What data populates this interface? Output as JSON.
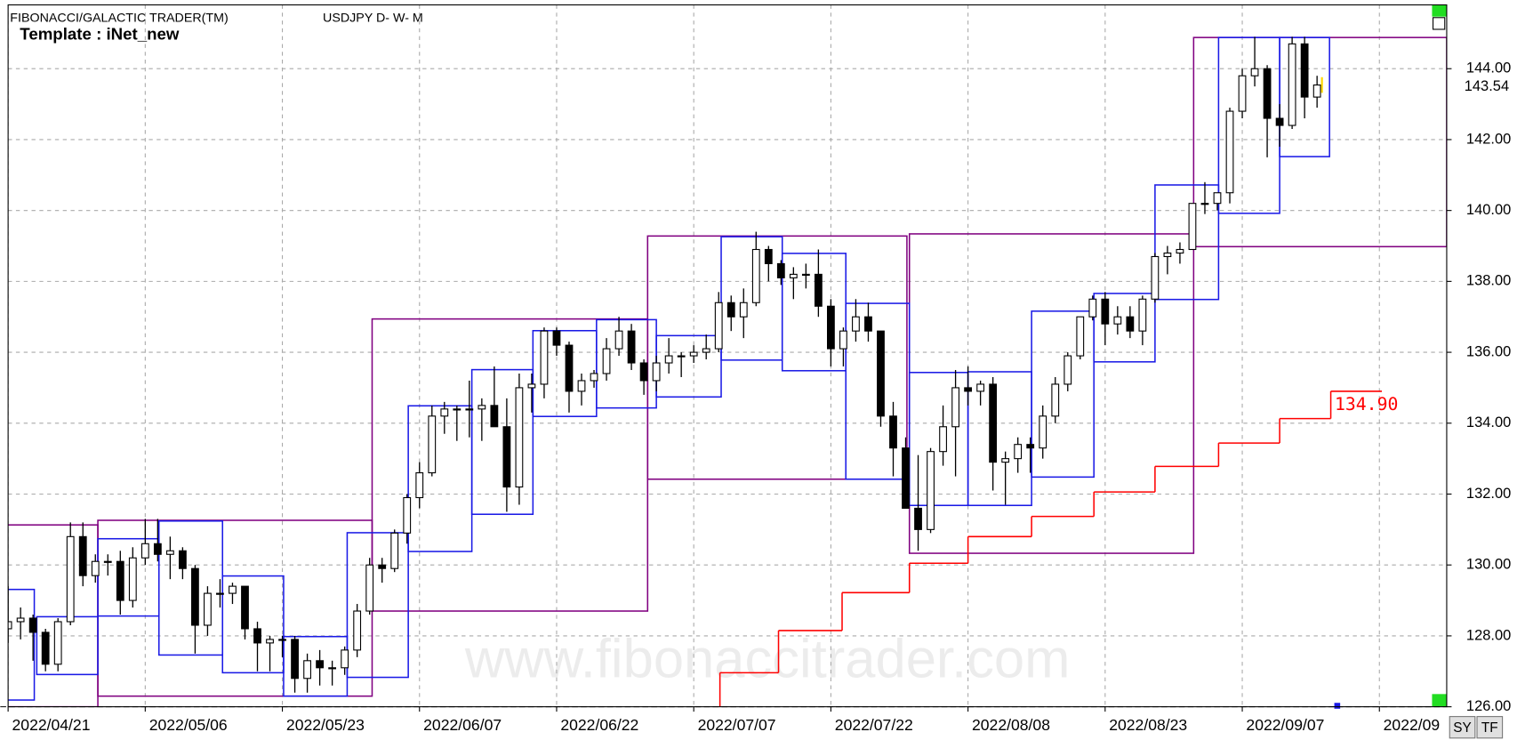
{
  "chart_data": {
    "type": "candlestick",
    "title": "FIBONACCI/GALACTIC TRADER(TM)",
    "symbol": "USDJPY D- W- M",
    "template": "Template : iNet_new",
    "watermark": "www.fibonaccitrader.com",
    "buttons": [
      "SY",
      "TF"
    ],
    "xlim": [
      0,
      115.4
    ],
    "xticks": [
      {
        "value": 0,
        "label": "2022/04/21"
      },
      {
        "value": 11,
        "label": "2022/05/06"
      },
      {
        "value": 22,
        "label": "2022/05/23"
      },
      {
        "value": 33,
        "label": "2022/06/07"
      },
      {
        "value": 44,
        "label": "2022/06/22"
      },
      {
        "value": 55,
        "label": "2022/07/07"
      },
      {
        "value": 66,
        "label": "2022/07/22"
      },
      {
        "value": 77,
        "label": "2022/08/08"
      },
      {
        "value": 88,
        "label": "2022/08/23"
      },
      {
        "value": 99,
        "label": "2022/09/07"
      },
      {
        "value": 110,
        "label": "2022/09"
      }
    ],
    "ylim": [
      126,
      145.8
    ],
    "yticks": [
      {
        "value": 126,
        "label": "126.00"
      },
      {
        "value": 128,
        "label": "128.00"
      },
      {
        "value": 130,
        "label": "130.00"
      },
      {
        "value": 132,
        "label": "132.00"
      },
      {
        "value": 134,
        "label": "134.00"
      },
      {
        "value": 136,
        "label": "136.00"
      },
      {
        "value": 138,
        "label": "138.00"
      },
      {
        "value": 140,
        "label": "140.00"
      },
      {
        "value": 142,
        "label": "142.00"
      },
      {
        "value": 144,
        "label": "144.00"
      }
    ],
    "grid": true,
    "colors": {
      "up": "#ffffff",
      "down": "#000000",
      "weekly": "#1a1ae6",
      "monthly": "#800080",
      "stop": "#ff0000"
    },
    "ohlc": [
      [
        128.2,
        129.4,
        127.8,
        128.4
      ],
      [
        128.4,
        128.8,
        127.9,
        128.5
      ],
      [
        128.5,
        128.6,
        127.3,
        128.1
      ],
      [
        128.1,
        128.2,
        127.0,
        127.2
      ],
      [
        127.2,
        128.5,
        127.0,
        128.4
      ],
      [
        128.4,
        131.2,
        128.3,
        130.8
      ],
      [
        130.8,
        131.2,
        129.4,
        129.7
      ],
      [
        129.7,
        130.3,
        129.5,
        130.1
      ],
      [
        130.1,
        130.3,
        129.7,
        130.1
      ],
      [
        130.1,
        130.4,
        128.6,
        129.0
      ],
      [
        129.0,
        130.5,
        128.8,
        130.2
      ],
      [
        130.2,
        131.3,
        130.0,
        130.6
      ],
      [
        130.6,
        131.3,
        130.1,
        130.3
      ],
      [
        130.3,
        130.8,
        129.6,
        130.4
      ],
      [
        130.4,
        130.5,
        129.6,
        129.9
      ],
      [
        129.9,
        130.0,
        127.5,
        128.3
      ],
      [
        128.3,
        129.4,
        128.0,
        129.2
      ],
      [
        129.2,
        129.6,
        128.8,
        129.2
      ],
      [
        129.2,
        129.5,
        128.9,
        129.4
      ],
      [
        129.4,
        129.4,
        127.9,
        128.2
      ],
      [
        128.2,
        128.4,
        127.0,
        127.8
      ],
      [
        127.8,
        128.0,
        127.0,
        127.9
      ],
      [
        127.9,
        128.0,
        127.4,
        127.9
      ],
      [
        127.9,
        128.0,
        126.4,
        126.8
      ],
      [
        126.8,
        127.5,
        126.4,
        127.3
      ],
      [
        127.3,
        127.6,
        126.6,
        127.1
      ],
      [
        127.1,
        127.3,
        126.6,
        127.1
      ],
      [
        127.1,
        127.7,
        126.9,
        127.6
      ],
      [
        127.6,
        128.9,
        127.4,
        128.7
      ],
      [
        128.7,
        130.2,
        128.6,
        130.0
      ],
      [
        130.0,
        130.2,
        129.5,
        129.9
      ],
      [
        129.9,
        131.0,
        129.8,
        130.9
      ],
      [
        130.9,
        132.0,
        130.6,
        131.9
      ],
      [
        131.9,
        132.9,
        131.6,
        132.6
      ],
      [
        132.6,
        134.5,
        132.5,
        134.2
      ],
      [
        134.2,
        134.6,
        133.7,
        134.4
      ],
      [
        134.4,
        134.5,
        133.5,
        134.4
      ],
      [
        134.4,
        135.2,
        133.6,
        134.4
      ],
      [
        134.4,
        134.7,
        133.5,
        134.5
      ],
      [
        134.5,
        135.6,
        133.9,
        133.9
      ],
      [
        133.9,
        134.7,
        131.5,
        132.2
      ],
      [
        132.2,
        135.4,
        131.7,
        135.0
      ],
      [
        135.0,
        135.4,
        134.3,
        135.1
      ],
      [
        135.1,
        136.7,
        134.7,
        136.6
      ],
      [
        136.6,
        136.7,
        135.9,
        136.2
      ],
      [
        136.2,
        136.3,
        134.3,
        134.9
      ],
      [
        134.9,
        135.4,
        134.5,
        135.2
      ],
      [
        135.2,
        135.5,
        135.0,
        135.4
      ],
      [
        135.4,
        136.4,
        135.2,
        136.1
      ],
      [
        136.1,
        137.0,
        135.9,
        136.6
      ],
      [
        136.6,
        136.8,
        135.5,
        135.7
      ],
      [
        135.7,
        135.8,
        134.8,
        135.2
      ],
      [
        135.2,
        135.9,
        134.9,
        135.7
      ],
      [
        135.7,
        136.4,
        135.4,
        135.9
      ],
      [
        135.9,
        136.0,
        135.3,
        135.9
      ],
      [
        135.9,
        136.2,
        135.7,
        136.0
      ],
      [
        136.0,
        136.5,
        135.8,
        136.1
      ],
      [
        136.1,
        137.7,
        136.0,
        137.4
      ],
      [
        137.4,
        137.6,
        136.6,
        137.0
      ],
      [
        137.0,
        137.8,
        136.4,
        137.4
      ],
      [
        137.4,
        139.4,
        137.3,
        138.9
      ],
      [
        138.9,
        139.0,
        138.0,
        138.5
      ],
      [
        138.5,
        138.6,
        137.9,
        138.1
      ],
      [
        138.1,
        138.4,
        137.5,
        138.2
      ],
      [
        138.2,
        138.5,
        137.8,
        138.2
      ],
      [
        138.2,
        138.9,
        137.0,
        137.3
      ],
      [
        137.3,
        137.5,
        135.6,
        136.1
      ],
      [
        136.1,
        136.7,
        135.6,
        136.6
      ],
      [
        136.6,
        137.5,
        136.3,
        137.0
      ],
      [
        137.0,
        137.4,
        136.3,
        136.6
      ],
      [
        136.6,
        136.6,
        133.9,
        134.2
      ],
      [
        134.2,
        134.6,
        132.5,
        133.3
      ],
      [
        133.3,
        133.6,
        131.6,
        131.6
      ],
      [
        131.6,
        133.1,
        130.4,
        131.0
      ],
      [
        131.0,
        133.3,
        130.9,
        133.2
      ],
      [
        133.2,
        134.5,
        132.8,
        133.9
      ],
      [
        133.9,
        135.5,
        132.5,
        135.0
      ],
      [
        135.0,
        135.6,
        134.5,
        134.9
      ],
      [
        134.9,
        135.2,
        134.5,
        135.1
      ],
      [
        135.1,
        135.3,
        132.1,
        132.9
      ],
      [
        132.9,
        133.2,
        131.7,
        133.0
      ],
      [
        133.0,
        133.6,
        132.6,
        133.4
      ],
      [
        133.4,
        133.6,
        132.6,
        133.3
      ],
      [
        133.3,
        134.5,
        133.0,
        134.2
      ],
      [
        134.2,
        135.3,
        134.0,
        135.1
      ],
      [
        135.1,
        136.0,
        134.9,
        135.9
      ],
      [
        135.9,
        137.0,
        135.8,
        137.0
      ],
      [
        137.0,
        137.6,
        136.9,
        137.5
      ],
      [
        137.5,
        137.7,
        136.2,
        136.8
      ],
      [
        136.8,
        137.3,
        136.5,
        137.0
      ],
      [
        137.0,
        137.3,
        136.4,
        136.6
      ],
      [
        136.6,
        137.6,
        136.2,
        137.5
      ],
      [
        137.5,
        138.8,
        137.4,
        138.7
      ],
      [
        138.7,
        139.0,
        138.2,
        138.8
      ],
      [
        138.8,
        139.1,
        138.5,
        138.9
      ],
      [
        138.9,
        140.2,
        138.9,
        140.2
      ],
      [
        140.2,
        140.8,
        139.9,
        140.2
      ],
      [
        140.2,
        140.4,
        140.0,
        140.5
      ],
      [
        140.5,
        142.9,
        140.2,
        142.8
      ],
      [
        142.8,
        144.0,
        142.6,
        143.8
      ],
      [
        143.8,
        144.9,
        143.5,
        144.0
      ],
      [
        144.0,
        144.1,
        141.5,
        142.6
      ],
      [
        142.6,
        143.0,
        141.8,
        142.4
      ],
      [
        142.4,
        144.9,
        142.3,
        144.7
      ],
      [
        144.7,
        144.9,
        142.6,
        143.2
      ],
      [
        143.2,
        143.8,
        142.9,
        143.54
      ]
    ],
    "weekly_boxes": [
      {
        "x0": -0.6,
        "x1": 2.1,
        "high": 129.31,
        "low": 126.19
      },
      {
        "x0": 2.3,
        "x1": 7.2,
        "high": 128.54,
        "low": 126.91
      },
      {
        "x0": 7.2,
        "x1": 12.1,
        "high": 130.74,
        "low": 128.56
      },
      {
        "x0": 12.1,
        "x1": 17.2,
        "high": 131.24,
        "low": 127.46
      },
      {
        "x0": 17.2,
        "x1": 22.1,
        "high": 129.69,
        "low": 126.96
      },
      {
        "x0": 22.1,
        "x1": 27.2,
        "high": 127.98,
        "low": 126.3
      },
      {
        "x0": 27.2,
        "x1": 32.1,
        "high": 130.91,
        "low": 126.83
      },
      {
        "x0": 32.1,
        "x1": 37.2,
        "high": 134.49,
        "low": 130.38
      },
      {
        "x0": 37.2,
        "x1": 42.1,
        "high": 135.51,
        "low": 131.43
      },
      {
        "x0": 42.1,
        "x1": 47.2,
        "high": 136.61,
        "low": 134.19
      },
      {
        "x0": 47.2,
        "x1": 52.0,
        "high": 136.92,
        "low": 134.43
      },
      {
        "x0": 52.0,
        "x1": 57.2,
        "high": 136.47,
        "low": 134.74
      },
      {
        "x0": 57.2,
        "x1": 62.1,
        "high": 139.26,
        "low": 135.78
      },
      {
        "x0": 62.1,
        "x1": 67.2,
        "high": 138.79,
        "low": 135.48
      },
      {
        "x0": 67.2,
        "x1": 72.3,
        "high": 137.38,
        "low": 132.42
      },
      {
        "x0": 72.3,
        "x1": 77.0,
        "high": 135.43,
        "low": 131.68
      },
      {
        "x0": 77.0,
        "x1": 82.1,
        "high": 135.45,
        "low": 131.68
      },
      {
        "x0": 82.1,
        "x1": 87.1,
        "high": 137.16,
        "low": 132.48
      },
      {
        "x0": 87.1,
        "x1": 92.0,
        "high": 137.66,
        "low": 135.73
      },
      {
        "x0": 92.0,
        "x1": 97.1,
        "high": 140.72,
        "low": 137.49
      },
      {
        "x0": 97.1,
        "x1": 102.0,
        "high": 144.88,
        "low": 139.92
      },
      {
        "x0": 102.0,
        "x1": 106.0,
        "high": 144.88,
        "low": 141.52
      }
    ],
    "monthly_boxes": [
      {
        "x0": -0.6,
        "x1": 7.2,
        "high": 131.13,
        "low": 126.0
      },
      {
        "x0": 7.2,
        "x1": 29.2,
        "high": 131.26,
        "low": 126.3
      },
      {
        "x0": 29.2,
        "x1": 51.3,
        "high": 136.94,
        "low": 128.7
      },
      {
        "x0": 51.3,
        "x1": 72.1,
        "high": 139.28,
        "low": 132.42
      },
      {
        "x0": 72.3,
        "x1": 95.1,
        "high": 139.34,
        "low": 130.33
      },
      {
        "x0": 95.1,
        "x1": 115.4,
        "high": 144.88,
        "low": 138.98
      }
    ],
    "stop_line": {
      "x": [
        57.1,
        61.8,
        66.9,
        72.3,
        77.0,
        82.1,
        87.1,
        92.0,
        97.1,
        102.0,
        106.1
      ],
      "values": [
        126.96,
        128.15,
        129.22,
        130.05,
        130.8,
        131.37,
        132.06,
        132.78,
        133.44,
        134.13,
        134.9
      ],
      "label": "134.90"
    }
  }
}
